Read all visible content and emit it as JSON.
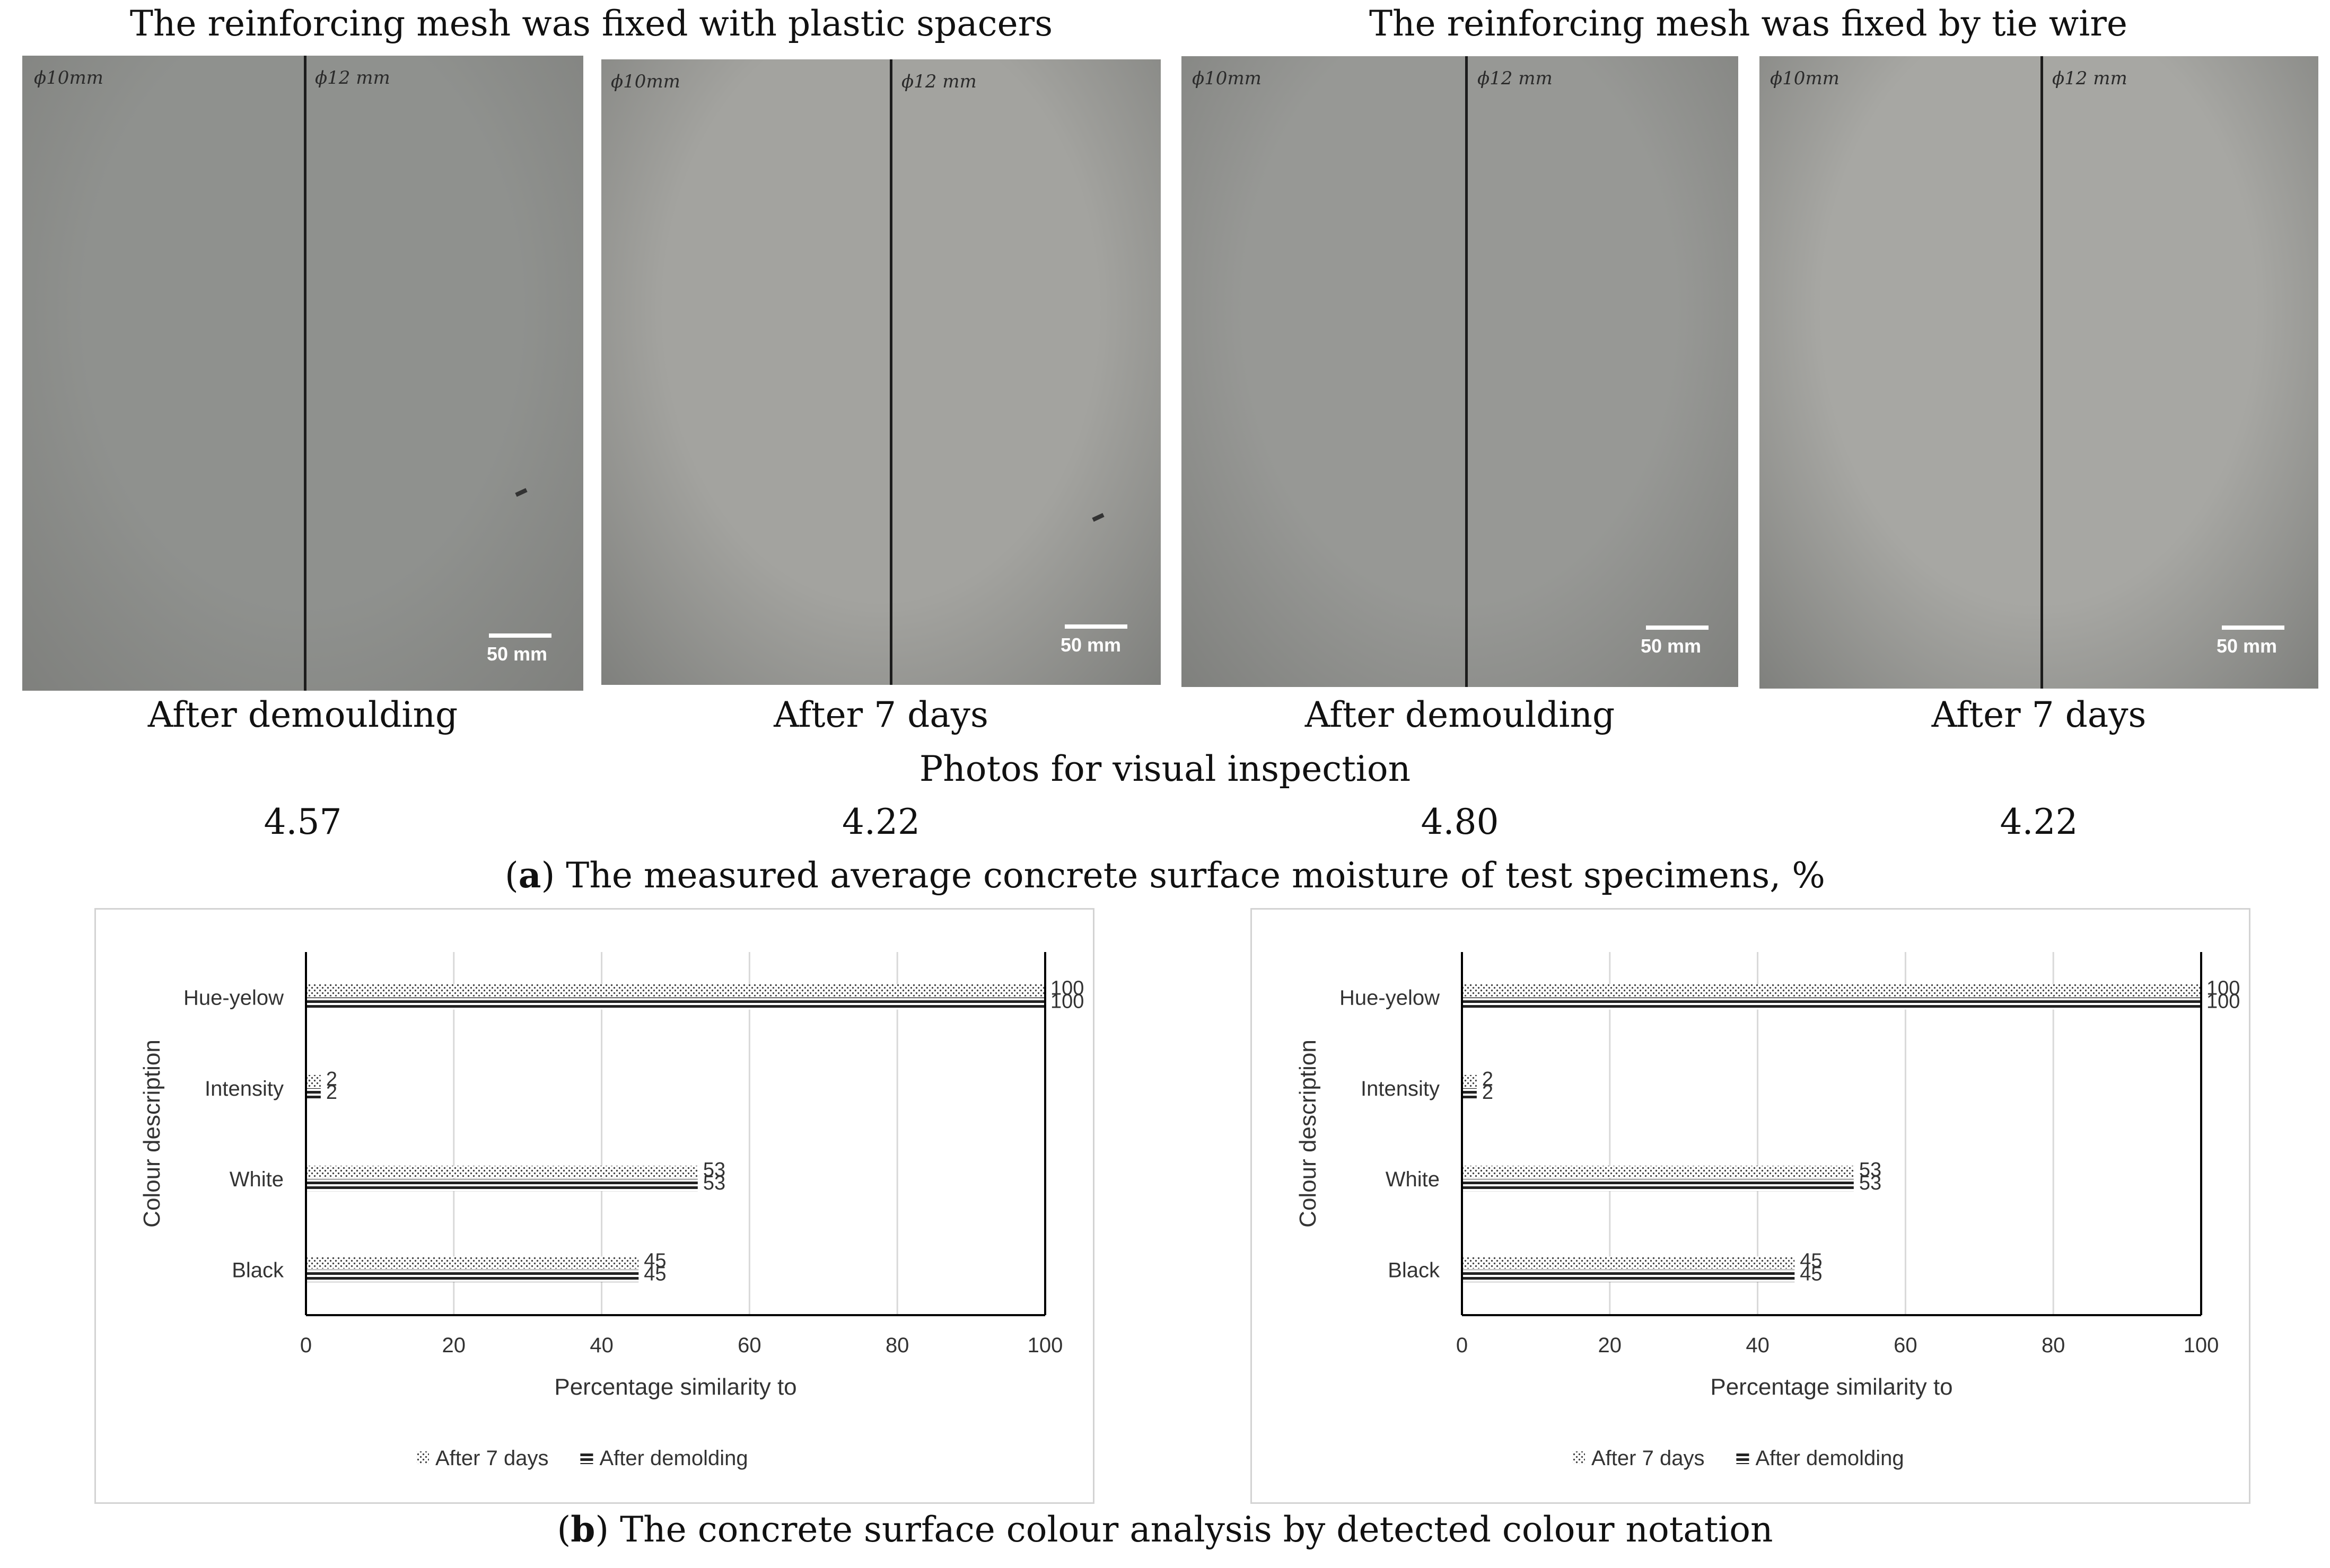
{
  "photos_section": {
    "group_titles": [
      "The reinforcing mesh was fixed with plastic spacers",
      "The reinforcing mesh was fixed by tie wire"
    ],
    "photos": [
      {
        "left_label": "ϕ10mm",
        "right_label": "ϕ12 mm",
        "scale_label": "50 mm",
        "caption": "After demoulding",
        "moisture": "4.57",
        "tone": "#8f918e"
      },
      {
        "left_label": "ϕ10mm",
        "right_label": "ϕ12 mm",
        "scale_label": "50 mm",
        "caption": "After 7 days",
        "moisture": "4.22",
        "tone": "#a3a39f"
      },
      {
        "left_label": "ϕ10mm",
        "right_label": "ϕ12 mm",
        "scale_label": "50 mm",
        "caption": "After demoulding",
        "moisture": "4.80",
        "tone": "#979895"
      },
      {
        "left_label": "ϕ10mm",
        "right_label": "ϕ12 mm",
        "scale_label": "50 mm",
        "caption": "After 7 days",
        "moisture": "4.22",
        "tone": "#a7a7a3"
      }
    ],
    "visual_title": "Photos for visual inspection",
    "caption_a_letter": "a",
    "caption_a_text": " The measured average concrete surface moisture of test specimens, %"
  },
  "chart_data": [
    {
      "type": "bar",
      "orientation": "horizontal",
      "categories": [
        "Hue-yelow",
        "Intensity",
        "White",
        "Black"
      ],
      "series": [
        {
          "name": "After 7 days",
          "values": [
            100,
            2,
            53,
            45
          ],
          "pattern": "dots"
        },
        {
          "name": "After demolding",
          "values": [
            100,
            2,
            53,
            45
          ],
          "pattern": "horizontal-lines"
        }
      ],
      "xlabel": "Percentage similarity to",
      "ylabel": "Colour description",
      "xlim": [
        0,
        100
      ],
      "xticks": [
        0,
        20,
        40,
        60,
        80,
        100
      ],
      "grid": "vertical",
      "legend_position": "bottom"
    },
    {
      "type": "bar",
      "orientation": "horizontal",
      "categories": [
        "Hue-yelow",
        "Intensity",
        "White",
        "Black"
      ],
      "series": [
        {
          "name": "After 7 days",
          "values": [
            100,
            2,
            53,
            45
          ],
          "pattern": "dots"
        },
        {
          "name": "After demolding",
          "values": [
            100,
            2,
            53,
            45
          ],
          "pattern": "horizontal-lines"
        }
      ],
      "xlabel": "Percentage similarity to",
      "ylabel": "Colour description",
      "xlim": [
        0,
        100
      ],
      "xticks": [
        0,
        20,
        40,
        60,
        80,
        100
      ],
      "grid": "vertical",
      "legend_position": "bottom"
    }
  ],
  "caption_b_letter": "b",
  "caption_b_text": " The concrete surface colour analysis by detected colour notation"
}
